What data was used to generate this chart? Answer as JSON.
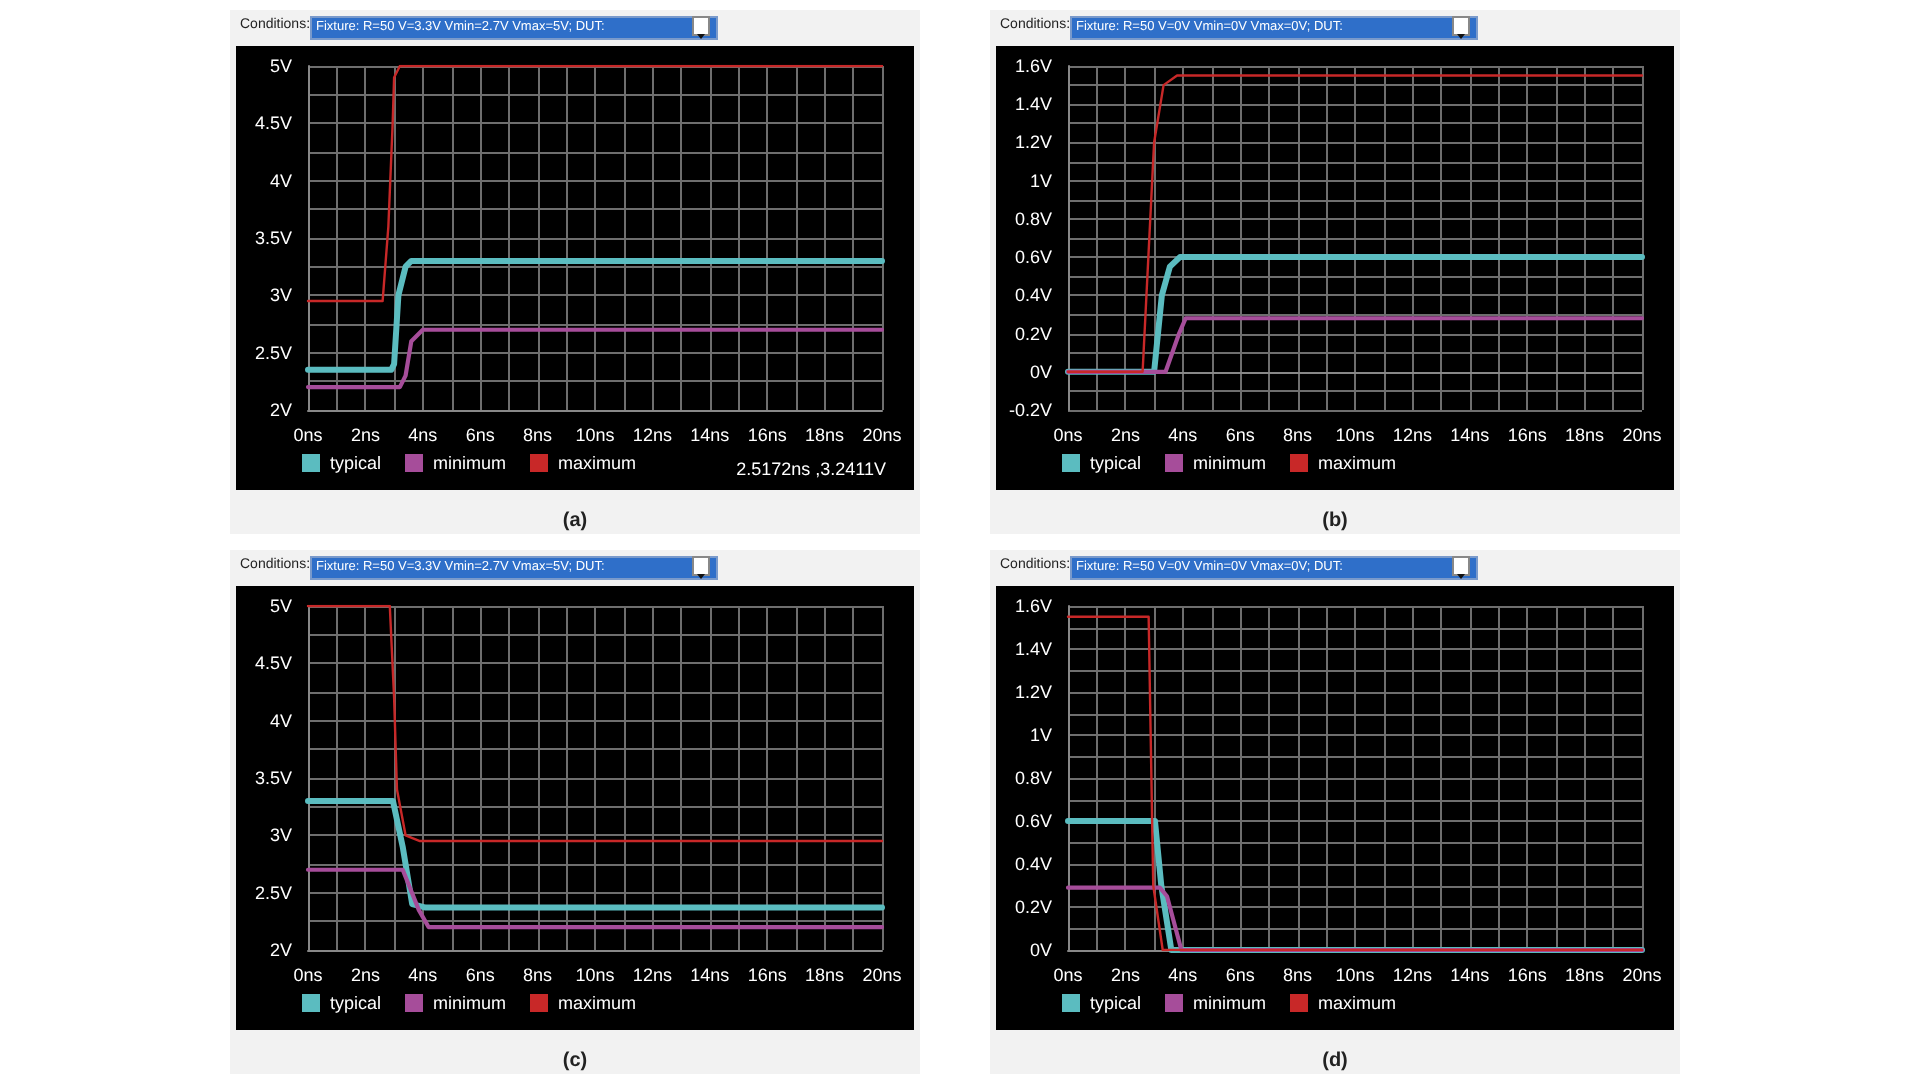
{
  "chart_data": [
    {
      "type": "line",
      "title": "(a)",
      "annotations": [
        "Conditions:",
        "Fixture: R=50 V=3.3V Vmin=2.7V Vmax=5V;  DUT:",
        "2.5172ns ,3.2411V"
      ],
      "series": [
        {
          "name": "typical",
          "color": "#5bbcc0",
          "x": [
            0,
            2.9,
            3.0,
            3.15,
            3.4,
            3.6,
            20
          ],
          "values": [
            2.35,
            2.35,
            2.4,
            3.0,
            3.25,
            3.3,
            3.3
          ]
        },
        {
          "name": "minimum",
          "color": "#a64d9a",
          "x": [
            0,
            3.2,
            3.4,
            3.6,
            4.0,
            20
          ],
          "values": [
            2.2,
            2.2,
            2.3,
            2.6,
            2.7,
            2.7
          ]
        },
        {
          "name": "maximum",
          "color": "#c82828",
          "x": [
            0,
            2.6,
            2.8,
            2.95,
            3.0,
            3.2,
            20
          ],
          "values": [
            2.95,
            2.95,
            3.6,
            4.5,
            4.9,
            5.0,
            5.0
          ]
        }
      ],
      "xlim": [
        0,
        20
      ],
      "xticks": [
        {
          "value": 0,
          "label": "0ns"
        },
        {
          "value": 1,
          "label": null
        },
        {
          "value": 2,
          "label": "2ns"
        },
        {
          "value": 3,
          "label": null
        },
        {
          "value": 4,
          "label": "4ns"
        },
        {
          "value": 5,
          "label": null
        },
        {
          "value": 6,
          "label": "6ns"
        },
        {
          "value": 7,
          "label": null
        },
        {
          "value": 8,
          "label": "8ns"
        },
        {
          "value": 9,
          "label": null
        },
        {
          "value": 10,
          "label": "10ns"
        },
        {
          "value": 11,
          "label": null
        },
        {
          "value": 12,
          "label": "12ns"
        },
        {
          "value": 13,
          "label": null
        },
        {
          "value": 14,
          "label": "14ns"
        },
        {
          "value": 15,
          "label": null
        },
        {
          "value": 16,
          "label": "16ns"
        },
        {
          "value": 17,
          "label": null
        },
        {
          "value": 18,
          "label": "18ns"
        },
        {
          "value": 19,
          "label": null
        },
        {
          "value": 20,
          "label": "20ns"
        }
      ],
      "ylim": [
        2,
        5
      ],
      "yticks": [
        {
          "value": 2,
          "label": "2V"
        },
        {
          "value": 2.25,
          "label": null
        },
        {
          "value": 2.5,
          "label": "2.5V"
        },
        {
          "value": 2.75,
          "label": null
        },
        {
          "value": 3,
          "label": "3V"
        },
        {
          "value": 3.25,
          "label": null
        },
        {
          "value": 3.5,
          "label": "3.5V"
        },
        {
          "value": 3.75,
          "label": null
        },
        {
          "value": 4,
          "label": "4V"
        },
        {
          "value": 4.25,
          "label": null
        },
        {
          "value": 4.5,
          "label": "4.5V"
        },
        {
          "value": 4.75,
          "label": null
        },
        {
          "value": 5,
          "label": "5V"
        }
      ],
      "grid": true,
      "legend": "bottom left",
      "marker": "none",
      "line_style": "solid"
    },
    {
      "type": "line",
      "title": "(b)",
      "annotations": [
        "Conditions:",
        "Fixture: R=50 V=0V Vmin=0V Vmax=0V;  DUT:"
      ],
      "series": [
        {
          "name": "typical",
          "color": "#5bbcc0",
          "x": [
            0,
            3.0,
            3.27,
            3.55,
            3.9,
            20
          ],
          "values": [
            0,
            0,
            0.4,
            0.55,
            0.6,
            0.6
          ]
        },
        {
          "name": "minimum",
          "color": "#a64d9a",
          "x": [
            0,
            3.4,
            3.87,
            4.1,
            20
          ],
          "values": [
            0,
            0,
            0.2,
            0.28,
            0.28
          ]
        },
        {
          "name": "maximum",
          "color": "#c82828",
          "x": [
            0,
            2.6,
            3.0,
            3.33,
            3.8,
            20
          ],
          "values": [
            0,
            0,
            1.2,
            1.5,
            1.55,
            1.55
          ]
        }
      ],
      "xlim": [
        0,
        20
      ],
      "xticks": [
        {
          "value": 0,
          "label": "0ns"
        },
        {
          "value": 1,
          "label": null
        },
        {
          "value": 2,
          "label": "2ns"
        },
        {
          "value": 3,
          "label": null
        },
        {
          "value": 4,
          "label": "4ns"
        },
        {
          "value": 5,
          "label": null
        },
        {
          "value": 6,
          "label": "6ns"
        },
        {
          "value": 7,
          "label": null
        },
        {
          "value": 8,
          "label": "8ns"
        },
        {
          "value": 9,
          "label": null
        },
        {
          "value": 10,
          "label": "10ns"
        },
        {
          "value": 11,
          "label": null
        },
        {
          "value": 12,
          "label": "12ns"
        },
        {
          "value": 13,
          "label": null
        },
        {
          "value": 14,
          "label": "14ns"
        },
        {
          "value": 15,
          "label": null
        },
        {
          "value": 16,
          "label": "16ns"
        },
        {
          "value": 17,
          "label": null
        },
        {
          "value": 18,
          "label": "18ns"
        },
        {
          "value": 19,
          "label": null
        },
        {
          "value": 20,
          "label": "20ns"
        }
      ],
      "ylim": [
        -0.2,
        1.6
      ],
      "yticks": [
        {
          "value": -0.2,
          "label": "-0.2V"
        },
        {
          "value": -0.1,
          "label": null
        },
        {
          "value": 0,
          "label": "0V"
        },
        {
          "value": 0.1,
          "label": null
        },
        {
          "value": 0.2,
          "label": "0.2V"
        },
        {
          "value": 0.3,
          "label": null
        },
        {
          "value": 0.4,
          "label": "0.4V"
        },
        {
          "value": 0.5,
          "label": null
        },
        {
          "value": 0.6,
          "label": "0.6V"
        },
        {
          "value": 0.7,
          "label": null
        },
        {
          "value": 0.8,
          "label": "0.8V"
        },
        {
          "value": 0.9,
          "label": null
        },
        {
          "value": 1,
          "label": "1V"
        },
        {
          "value": 1.1,
          "label": null
        },
        {
          "value": 1.2,
          "label": "1.2V"
        },
        {
          "value": 1.3,
          "label": null
        },
        {
          "value": 1.4,
          "label": "1.4V"
        },
        {
          "value": 1.5,
          "label": null
        },
        {
          "value": 1.6,
          "label": "1.6V"
        }
      ],
      "grid": true,
      "legend": "bottom left",
      "marker": "none",
      "line_style": "solid"
    },
    {
      "type": "line",
      "title": "(c)",
      "annotations": [
        "Conditions:",
        "Fixture: R=50 V=3.3V Vmin=2.7V Vmax=5V;  DUT:"
      ],
      "series": [
        {
          "name": "typical",
          "color": "#5bbcc0",
          "x": [
            0,
            2.96,
            3.3,
            3.63,
            4.1,
            20
          ],
          "values": [
            3.3,
            3.3,
            2.9,
            2.4,
            2.37,
            2.37
          ]
        },
        {
          "name": "minimum",
          "color": "#a64d9a",
          "x": [
            0,
            3.3,
            3.86,
            4.2,
            20
          ],
          "values": [
            2.7,
            2.7,
            2.35,
            2.2,
            2.2
          ]
        },
        {
          "name": "maximum",
          "color": "#c82828",
          "x": [
            0,
            2.85,
            3.0,
            3.1,
            3.4,
            3.9,
            20
          ],
          "values": [
            5,
            5,
            4.2,
            3.4,
            3.0,
            2.95,
            2.95
          ]
        }
      ],
      "xlim": [
        0,
        20
      ],
      "xticks": [
        {
          "value": 0,
          "label": "0ns"
        },
        {
          "value": 1,
          "label": null
        },
        {
          "value": 2,
          "label": "2ns"
        },
        {
          "value": 3,
          "label": null
        },
        {
          "value": 4,
          "label": "4ns"
        },
        {
          "value": 5,
          "label": null
        },
        {
          "value": 6,
          "label": "6ns"
        },
        {
          "value": 7,
          "label": null
        },
        {
          "value": 8,
          "label": "8ns"
        },
        {
          "value": 9,
          "label": null
        },
        {
          "value": 10,
          "label": "10ns"
        },
        {
          "value": 11,
          "label": null
        },
        {
          "value": 12,
          "label": "12ns"
        },
        {
          "value": 13,
          "label": null
        },
        {
          "value": 14,
          "label": "14ns"
        },
        {
          "value": 15,
          "label": null
        },
        {
          "value": 16,
          "label": "16ns"
        },
        {
          "value": 17,
          "label": null
        },
        {
          "value": 18,
          "label": "18ns"
        },
        {
          "value": 19,
          "label": null
        },
        {
          "value": 20,
          "label": "20ns"
        }
      ],
      "ylim": [
        2,
        5
      ],
      "yticks": [
        {
          "value": 2,
          "label": "2V"
        },
        {
          "value": 2.25,
          "label": null
        },
        {
          "value": 2.5,
          "label": "2.5V"
        },
        {
          "value": 2.75,
          "label": null
        },
        {
          "value": 3,
          "label": "3V"
        },
        {
          "value": 3.25,
          "label": null
        },
        {
          "value": 3.5,
          "label": "3.5V"
        },
        {
          "value": 3.75,
          "label": null
        },
        {
          "value": 4,
          "label": "4V"
        },
        {
          "value": 4.25,
          "label": null
        },
        {
          "value": 4.5,
          "label": "4.5V"
        },
        {
          "value": 4.75,
          "label": null
        },
        {
          "value": 5,
          "label": "5V"
        }
      ],
      "grid": true,
      "legend": "bottom left",
      "marker": "none",
      "line_style": "solid"
    },
    {
      "type": "line",
      "title": "(d)",
      "annotations": [
        "Conditions:",
        "Fixture: R=50 V=0V Vmin=0V Vmax=0V;  DUT:"
      ],
      "series": [
        {
          "name": "typical",
          "color": "#5bbcc0",
          "x": [
            0,
            3.03,
            3.25,
            3.6,
            20
          ],
          "values": [
            0.6,
            0.6,
            0.3,
            0,
            0
          ]
        },
        {
          "name": "minimum",
          "color": "#a64d9a",
          "x": [
            0,
            3.2,
            3.45,
            3.95,
            20
          ],
          "values": [
            0.29,
            0.29,
            0.25,
            0,
            0
          ]
        },
        {
          "name": "maximum",
          "color": "#c82828",
          "x": [
            0,
            2.81,
            2.97,
            3.3,
            20
          ],
          "values": [
            1.55,
            1.55,
            0.3,
            0,
            0
          ]
        }
      ],
      "xlim": [
        0,
        20
      ],
      "xticks": [
        {
          "value": 0,
          "label": "0ns"
        },
        {
          "value": 1,
          "label": null
        },
        {
          "value": 2,
          "label": "2ns"
        },
        {
          "value": 3,
          "label": null
        },
        {
          "value": 4,
          "label": "4ns"
        },
        {
          "value": 5,
          "label": null
        },
        {
          "value": 6,
          "label": "6ns"
        },
        {
          "value": 7,
          "label": null
        },
        {
          "value": 8,
          "label": "8ns"
        },
        {
          "value": 9,
          "label": null
        },
        {
          "value": 10,
          "label": "10ns"
        },
        {
          "value": 11,
          "label": null
        },
        {
          "value": 12,
          "label": "12ns"
        },
        {
          "value": 13,
          "label": null
        },
        {
          "value": 14,
          "label": "14ns"
        },
        {
          "value": 15,
          "label": null
        },
        {
          "value": 16,
          "label": "16ns"
        },
        {
          "value": 17,
          "label": null
        },
        {
          "value": 18,
          "label": "18ns"
        },
        {
          "value": 19,
          "label": null
        },
        {
          "value": 20,
          "label": "20ns"
        }
      ],
      "ylim": [
        0,
        1.6
      ],
      "yticks": [
        {
          "value": 0,
          "label": "0V"
        },
        {
          "value": 0.1,
          "label": null
        },
        {
          "value": 0.2,
          "label": "0.2V"
        },
        {
          "value": 0.3,
          "label": null
        },
        {
          "value": 0.4,
          "label": "0.4V"
        },
        {
          "value": 0.5,
          "label": null
        },
        {
          "value": 0.6,
          "label": "0.6V"
        },
        {
          "value": 0.7,
          "label": null
        },
        {
          "value": 0.8,
          "label": "0.8V"
        },
        {
          "value": 0.9,
          "label": null
        },
        {
          "value": 1,
          "label": "1V"
        },
        {
          "value": 1.1,
          "label": null
        },
        {
          "value": 1.2,
          "label": "1.2V"
        },
        {
          "value": 1.3,
          "label": null
        },
        {
          "value": 1.4,
          "label": "1.4V"
        },
        {
          "value": 1.5,
          "label": null
        },
        {
          "value": 1.6,
          "label": "1.6V"
        }
      ],
      "grid": true,
      "legend": "bottom left",
      "marker": "none",
      "line_style": "solid"
    }
  ]
}
